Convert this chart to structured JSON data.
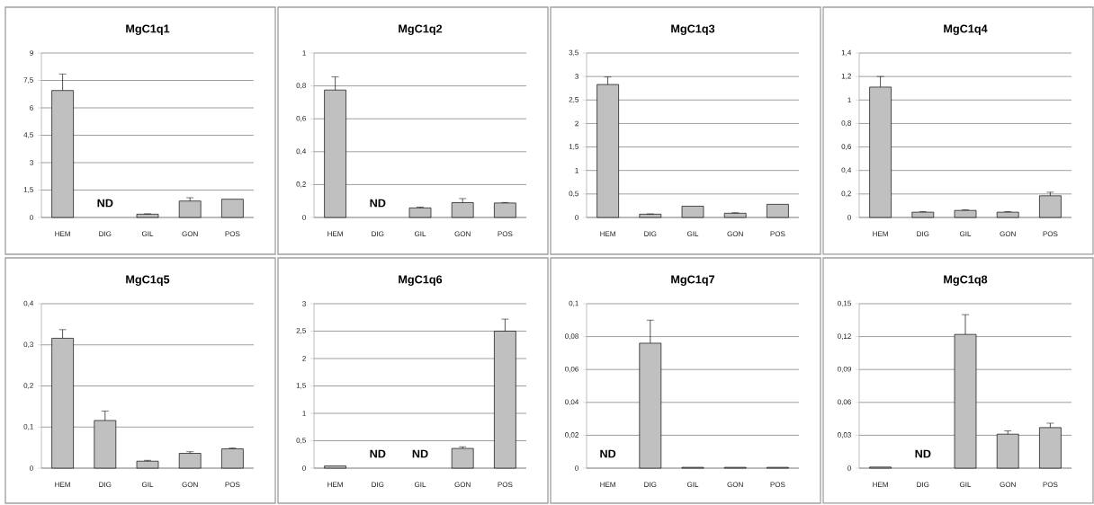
{
  "chart_data": [
    {
      "type": "bar",
      "title": "MgC1q1",
      "categories": [
        "HEM",
        "DIG",
        "GIL",
        "GON",
        "POS"
      ],
      "values": [
        6.95,
        null,
        0.18,
        0.9,
        1.0
      ],
      "errors": [
        0.9,
        null,
        0.02,
        0.18,
        null
      ],
      "color": "#c0c0c0",
      "ylim": [
        0,
        9
      ],
      "yticks": [
        0,
        {
          "value": 1.5,
          "label": "1,5"
        },
        3,
        {
          "value": 4.5,
          "label": "4,5"
        },
        6,
        {
          "value": 7.5,
          "label": "7,5"
        },
        9
      ],
      "grid": "y",
      "annotations": [
        "ND"
      ]
    },
    {
      "type": "bar",
      "title": "MgC1q2",
      "categories": [
        "HEM",
        "DIG",
        "GIL",
        "GON",
        "POS"
      ],
      "values": [
        0.775,
        null,
        0.058,
        0.09,
        0.088
      ],
      "errors": [
        0.08,
        null,
        0.005,
        0.025,
        0.003
      ],
      "color": "#c0c0c0",
      "ylim": [
        0,
        1
      ],
      "yticks": [
        0,
        {
          "value": 0.2,
          "label": "0,2"
        },
        {
          "value": 0.4,
          "label": "0,4"
        },
        {
          "value": 0.6,
          "label": "0,6"
        },
        {
          "value": 0.8,
          "label": "0,8"
        },
        1
      ],
      "grid": "y",
      "annotations": [
        "ND"
      ]
    },
    {
      "type": "bar",
      "title": "MgC1q3",
      "categories": [
        "HEM",
        "DIG",
        "GIL",
        "GON",
        "POS"
      ],
      "values": [
        2.83,
        0.07,
        0.24,
        0.09,
        0.28
      ],
      "errors": [
        0.16,
        0.005,
        null,
        0.01,
        null
      ],
      "color": "#c0c0c0",
      "ylim": [
        0,
        3.5
      ],
      "yticks": [
        0,
        {
          "value": 0.5,
          "label": "0,5"
        },
        1,
        {
          "value": 1.5,
          "label": "1,5"
        },
        2,
        {
          "value": 2.5,
          "label": "2,5"
        },
        3,
        {
          "value": 3.5,
          "label": "3,5"
        }
      ],
      "grid": "y"
    },
    {
      "type": "bar",
      "title": "MgC1q4",
      "categories": [
        "HEM",
        "DIG",
        "GIL",
        "GON",
        "POS"
      ],
      "values": [
        1.11,
        0.045,
        0.06,
        0.045,
        0.185
      ],
      "errors": [
        0.09,
        0.005,
        0.005,
        0.005,
        0.03
      ],
      "color": "#c0c0c0",
      "ylim": [
        0,
        1.4
      ],
      "yticks": [
        0,
        {
          "value": 0.2,
          "label": "0,2"
        },
        {
          "value": 0.4,
          "label": "0,4"
        },
        {
          "value": 0.6,
          "label": "0,6"
        },
        {
          "value": 0.8,
          "label": "0,8"
        },
        1,
        {
          "value": 1.2,
          "label": "1,2"
        },
        {
          "value": 1.4,
          "label": "1,4"
        }
      ],
      "grid": "y"
    },
    {
      "type": "bar",
      "title": "MgC1q5",
      "categories": [
        "HEM",
        "DIG",
        "GIL",
        "GON",
        "POS"
      ],
      "values": [
        0.316,
        0.116,
        0.017,
        0.036,
        0.047
      ],
      "errors": [
        0.021,
        0.023,
        0.002,
        0.004,
        0.002
      ],
      "color": "#c0c0c0",
      "ylim": [
        0,
        0.4
      ],
      "yticks": [
        0,
        {
          "value": 0.1,
          "label": "0,1"
        },
        {
          "value": 0.2,
          "label": "0,2"
        },
        {
          "value": 0.3,
          "label": "0,3"
        },
        {
          "value": 0.4,
          "label": "0,4"
        }
      ],
      "grid": "y"
    },
    {
      "type": "bar",
      "title": "MgC1q6",
      "categories": [
        "HEM",
        "DIG",
        "GIL",
        "GON",
        "POS"
      ],
      "values": [
        0.04,
        null,
        null,
        0.36,
        2.5
      ],
      "errors": [
        null,
        null,
        null,
        0.03,
        0.22
      ],
      "color": "#c0c0c0",
      "ylim": [
        0,
        3
      ],
      "yticks": [
        0,
        {
          "value": 0.5,
          "label": "0,5"
        },
        1,
        {
          "value": 1.5,
          "label": "1,5"
        },
        2,
        {
          "value": 2.5,
          "label": "2,5"
        },
        3
      ],
      "grid": "y",
      "annotations": [
        "ND",
        "ND"
      ]
    },
    {
      "type": "bar",
      "title": "MgC1q7",
      "categories": [
        "HEM",
        "DIG",
        "GIL",
        "GON",
        "POS"
      ],
      "values": [
        null,
        0.076,
        0.0005,
        0.0005,
        0.0005
      ],
      "errors": [
        null,
        0.014,
        null,
        null,
        null
      ],
      "color": "#c0c0c0",
      "ylim": [
        0,
        0.1
      ],
      "yticks": [
        0,
        {
          "value": 0.02,
          "label": "0,02"
        },
        {
          "value": 0.04,
          "label": "0,04"
        },
        {
          "value": 0.06,
          "label": "0,06"
        },
        {
          "value": 0.08,
          "label": "0,08"
        },
        {
          "value": 0.1,
          "label": "0,1"
        }
      ],
      "grid": "y",
      "annotations": [
        "ND"
      ]
    },
    {
      "type": "bar",
      "title": "MgC1q8",
      "categories": [
        "HEM",
        "DIG",
        "GIL",
        "GON",
        "POS"
      ],
      "values": [
        0.001,
        null,
        0.122,
        0.031,
        0.037
      ],
      "errors": [
        null,
        null,
        0.018,
        0.003,
        0.004
      ],
      "color": "#c0c0c0",
      "ylim": [
        0,
        0.15
      ],
      "yticks": [
        0,
        {
          "value": 0.03,
          "label": "0,03"
        },
        {
          "value": 0.06,
          "label": "0,06"
        },
        {
          "value": 0.09,
          "label": "0,09"
        },
        {
          "value": 0.12,
          "label": "0,12"
        },
        {
          "value": 0.15,
          "label": "0,15"
        }
      ],
      "grid": "y",
      "annotations": [
        "ND"
      ]
    }
  ]
}
